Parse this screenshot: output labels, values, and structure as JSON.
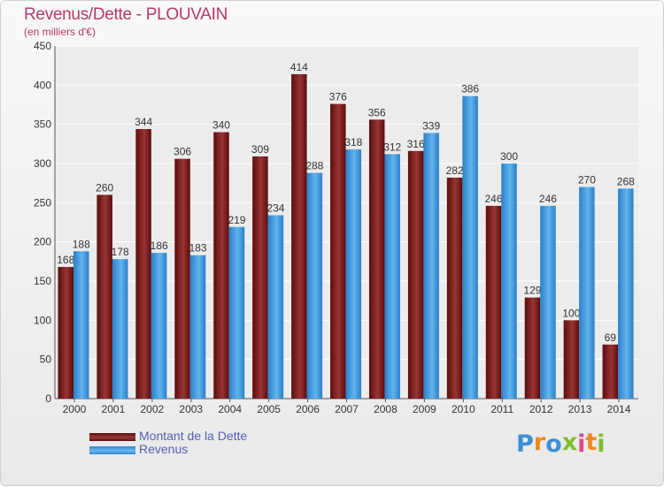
{
  "header": {
    "title": "Revenus/Dette - PLOUVAIN",
    "subtitle": "(en milliers d'€)"
  },
  "chart_data": {
    "type": "bar",
    "categories": [
      "2000",
      "2001",
      "2002",
      "2003",
      "2004",
      "2005",
      "2006",
      "2007",
      "2008",
      "2009",
      "2010",
      "2011",
      "2012",
      "2013",
      "2014"
    ],
    "series": [
      {
        "name": "Montant de la Dette",
        "color": "#7b2222",
        "values": [
          168,
          260,
          344,
          306,
          340,
          309,
          414,
          376,
          356,
          316,
          282,
          246,
          129,
          100,
          69
        ]
      },
      {
        "name": "Revenus",
        "color": "#4ea6e6",
        "values": [
          188,
          178,
          186,
          183,
          219,
          234,
          288,
          318,
          312,
          339,
          386,
          300,
          246,
          270,
          268
        ]
      }
    ],
    "ylim": [
      0,
      450
    ],
    "yticks": [
      0,
      50,
      100,
      150,
      200,
      250,
      300,
      350,
      400,
      450
    ],
    "grid": true,
    "legend": "bottom-left"
  },
  "legend": {
    "items": [
      {
        "label": "Montant de la Dette",
        "color": "#7b2222"
      },
      {
        "label": "Revenus",
        "color": "#4ea6e6"
      }
    ]
  },
  "logo": {
    "letters": [
      "P",
      "r",
      "o",
      "x",
      "i",
      "t",
      "i"
    ],
    "colors": [
      "#3f8fd6",
      "#f08a1d",
      "#3f8fd6",
      "#7fbf2a",
      "#e04a8a",
      "#f08a1d",
      "#7fbf2a"
    ]
  }
}
